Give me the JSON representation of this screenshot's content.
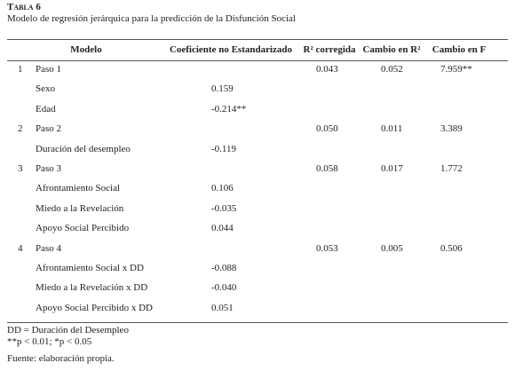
{
  "header": {
    "label": "Tabla 6",
    "caption": "Modelo de regresión jerárquica para la predicción de la Disfunción Social"
  },
  "table": {
    "columns": [
      "Modelo",
      "Coeficiente no Estandarizado",
      "R² corregida",
      "Cambio en R²",
      "Cambio en F"
    ],
    "rows": [
      {
        "num": "1",
        "label": "Paso 1",
        "r2": "0.043",
        "dr2": "0.052",
        "df": "7.959**"
      },
      {
        "label": "Sexo",
        "coef": "0.159"
      },
      {
        "label": "Edad",
        "coef": "-0.214**"
      },
      {
        "num": "2",
        "label": "Paso 2",
        "r2": "0.050",
        "dr2": "0.011",
        "df": "3.389"
      },
      {
        "label": "Duración del desempleo",
        "coef": "-0.119"
      },
      {
        "num": "3",
        "label": "Paso 3",
        "r2": "0.058",
        "dr2": "0.017",
        "df": "1.772"
      },
      {
        "label": "Afrontamiento Social",
        "coef": "0.106"
      },
      {
        "label": "Miedo a la Revelación",
        "coef": "-0.035"
      },
      {
        "label": "Apoyo Social Percibido",
        "coef": "0.044"
      },
      {
        "num": "4",
        "label": "Paso 4",
        "r2": "0.053",
        "dr2": "0.005",
        "df": "0.506"
      },
      {
        "label": "Afrontamiento Social x DD",
        "coef": "-0.088"
      },
      {
        "label": "Miedo a la Revelación x DD",
        "coef": "-0.040"
      },
      {
        "label": "Apoyo Social Percibido x DD",
        "coef": "0.051"
      }
    ]
  },
  "notes": [
    "DD = Duración del Desempleo",
    "**p < 0.01; *p < 0.05"
  ],
  "source": "Fuente: elaboración propia."
}
